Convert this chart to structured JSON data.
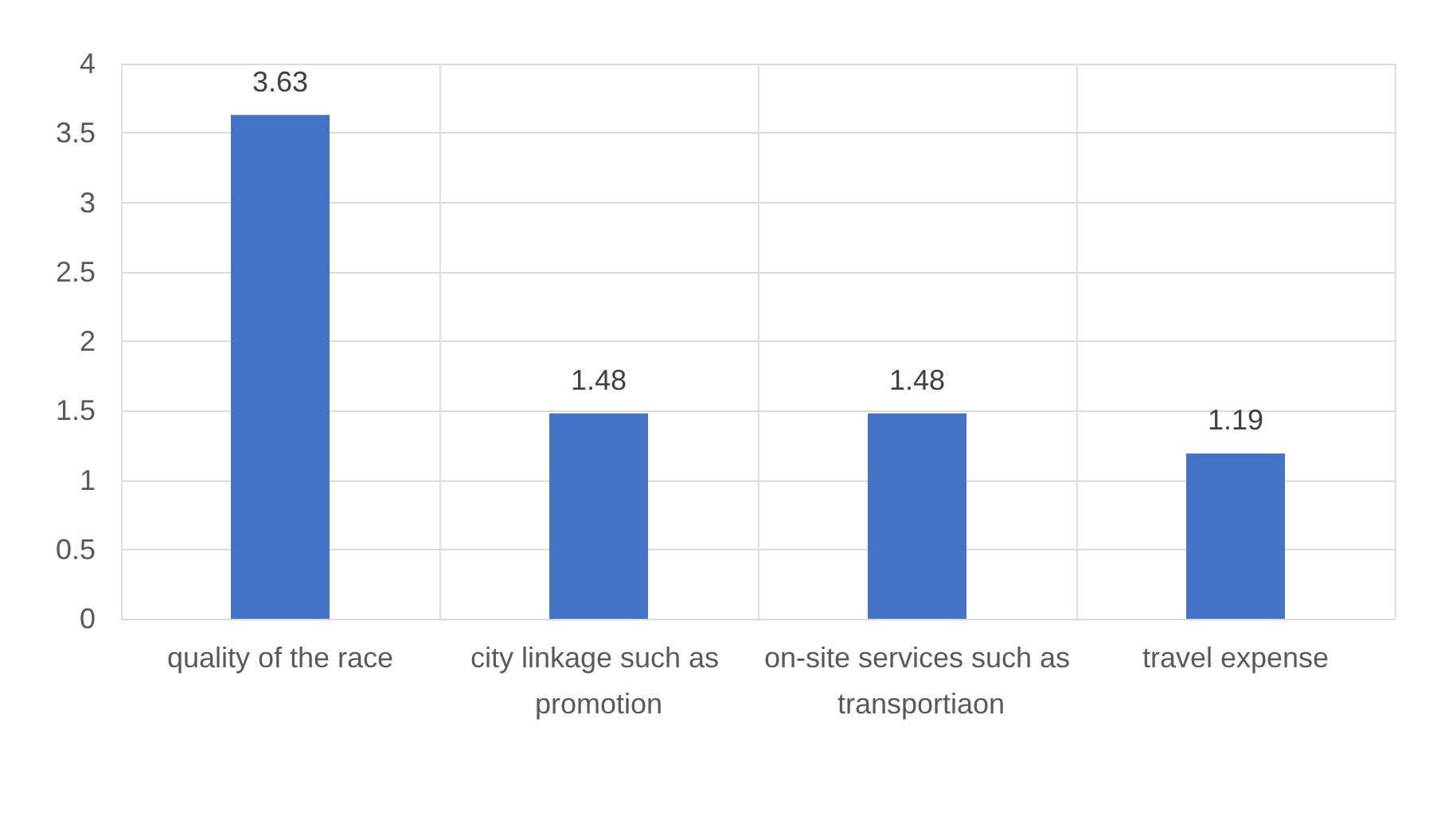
{
  "chart_data": {
    "type": "bar",
    "categories": [
      "quality of the race",
      "city linkage such as promotion",
      "on-site services such as transportiaon",
      "travel expense"
    ],
    "values": [
      3.63,
      1.48,
      1.48,
      1.19
    ],
    "color": "#4472c4",
    "ylim": [
      0,
      4
    ],
    "yticks": [
      0,
      0.5,
      1,
      1.5,
      2,
      2.5,
      3,
      3.5,
      4
    ],
    "grid": true,
    "data_labels": true
  }
}
